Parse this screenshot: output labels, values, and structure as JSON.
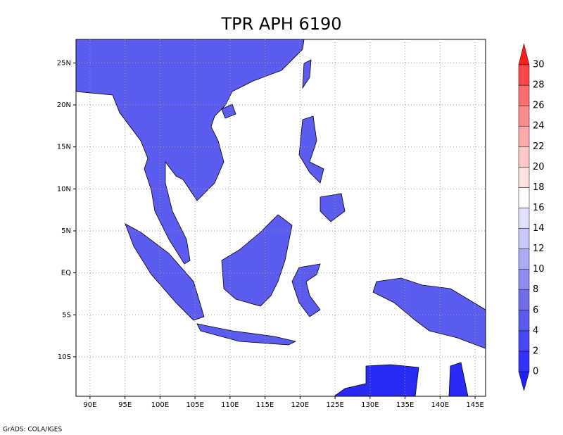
{
  "title": "TPR APH 6190",
  "footer": "GrADS: COLA/IGES",
  "map": {
    "lonlim": [
      88,
      146.5
    ],
    "latlim": [
      -14.7,
      27.8
    ],
    "grid": true,
    "lon_ticks": [
      {
        "value": 90,
        "label": "90E"
      },
      {
        "value": 95,
        "label": "95E"
      },
      {
        "value": 100,
        "label": "100E"
      },
      {
        "value": 105,
        "label": "105E"
      },
      {
        "value": 110,
        "label": "110E"
      },
      {
        "value": 115,
        "label": "115E"
      },
      {
        "value": 120,
        "label": "120E"
      },
      {
        "value": 125,
        "label": "125E"
      },
      {
        "value": 130,
        "label": "130E"
      },
      {
        "value": 135,
        "label": "135E"
      },
      {
        "value": 140,
        "label": "140E"
      },
      {
        "value": 145,
        "label": "145E"
      }
    ],
    "lat_ticks": [
      {
        "value": 25,
        "label": "25N"
      },
      {
        "value": 20,
        "label": "20N"
      },
      {
        "value": 15,
        "label": "15N"
      },
      {
        "value": 10,
        "label": "10N"
      },
      {
        "value": 5,
        "label": "5N"
      },
      {
        "value": 0,
        "label": "EQ"
      },
      {
        "value": -5,
        "label": "5S"
      },
      {
        "value": -10,
        "label": "10S"
      }
    ]
  },
  "colorbar": {
    "levels": [
      0,
      2,
      4,
      6,
      8,
      10,
      12,
      14,
      16,
      18,
      20,
      22,
      24,
      26,
      28,
      30
    ],
    "colors": [
      "#1e1eff",
      "#3232fa",
      "#4646f2",
      "#5a5aec",
      "#6e6ee8",
      "#8c8cf0",
      "#aaaaf5",
      "#c8c8fa",
      "#e1e1ff",
      "#ffffff",
      "#ffe1e1",
      "#ffc8c8",
      "#ffaaaa",
      "#ff8c8c",
      "#ff6e6e",
      "#ff4646",
      "#ff1e1e"
    ]
  }
}
